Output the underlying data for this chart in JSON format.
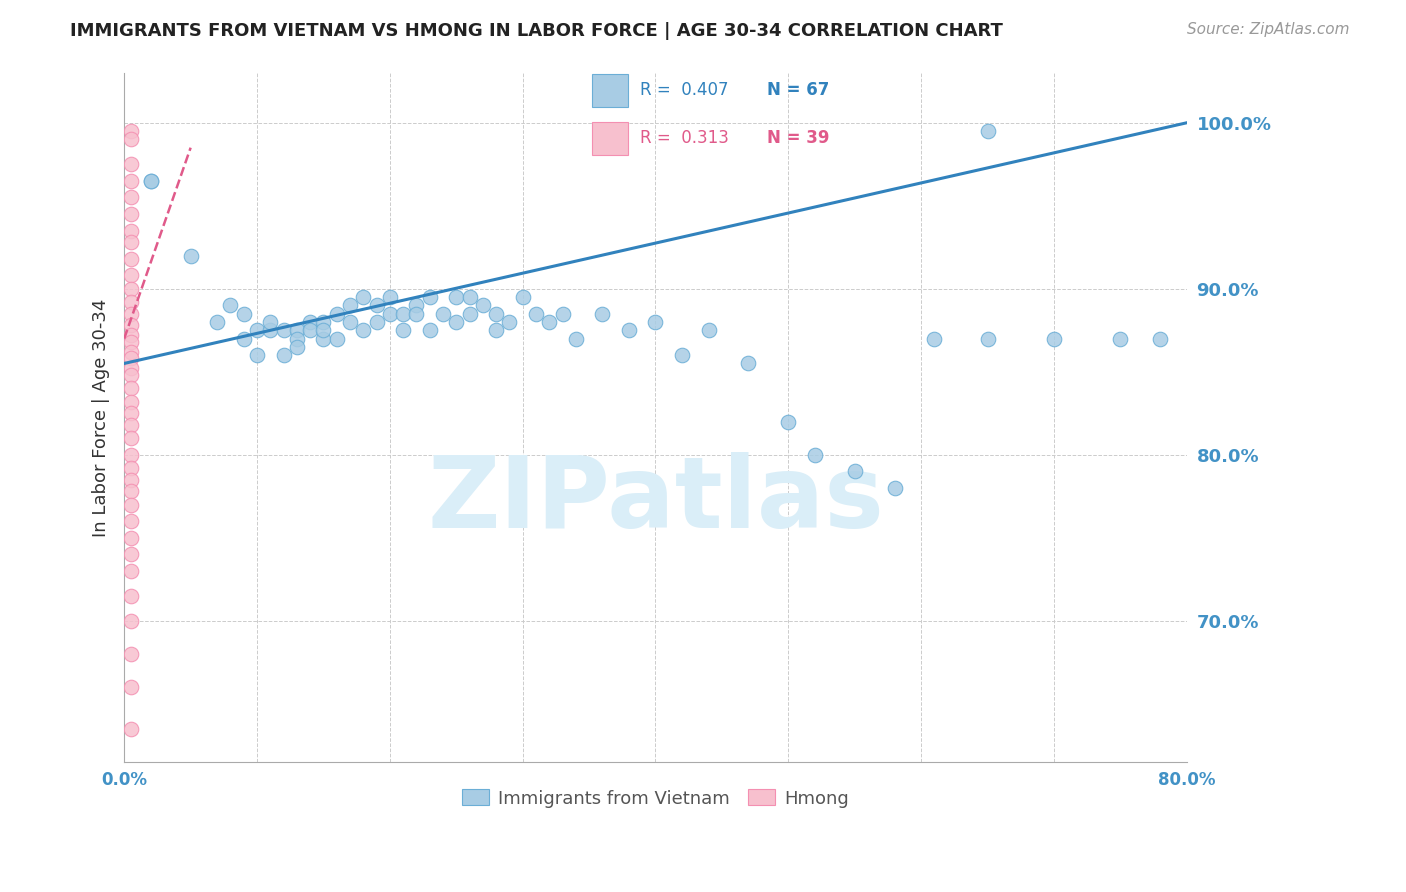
{
  "title": "IMMIGRANTS FROM VIETNAM VS HMONG IN LABOR FORCE | AGE 30-34 CORRELATION CHART",
  "source": "Source: ZipAtlas.com",
  "ylabel": "In Labor Force | Age 30-34",
  "xmin": 0.0,
  "xmax": 0.8,
  "ymin": 0.615,
  "ymax": 1.03,
  "yticks": [
    0.7,
    0.8,
    0.9,
    1.0
  ],
  "ytick_labels": [
    "70.0%",
    "80.0%",
    "90.0%",
    "100.0%"
  ],
  "legend_blue_r": "R =  0.407",
  "legend_blue_n": "N = 67",
  "legend_pink_r": "R =  0.313",
  "legend_pink_n": "N = 39",
  "blue_color": "#a8cce4",
  "pink_color": "#f7c0ce",
  "blue_edge_color": "#6baed6",
  "pink_edge_color": "#f48fb1",
  "blue_line_color": "#3182bd",
  "pink_line_color": "#e05a8a",
  "watermark_color": "#daeef8",
  "title_color": "#222222",
  "axis_label_color": "#333333",
  "tick_label_color": "#4292c6",
  "grid_color": "#cccccc",
  "background_color": "#ffffff",
  "vietnam_x": [
    0.02,
    0.05,
    0.07,
    0.08,
    0.09,
    0.09,
    0.1,
    0.1,
    0.11,
    0.11,
    0.12,
    0.12,
    0.13,
    0.13,
    0.13,
    0.14,
    0.14,
    0.15,
    0.15,
    0.15,
    0.16,
    0.16,
    0.17,
    0.17,
    0.18,
    0.18,
    0.19,
    0.19,
    0.2,
    0.2,
    0.21,
    0.21,
    0.22,
    0.22,
    0.23,
    0.23,
    0.24,
    0.25,
    0.25,
    0.26,
    0.26,
    0.27,
    0.28,
    0.28,
    0.29,
    0.3,
    0.31,
    0.32,
    0.33,
    0.34,
    0.36,
    0.38,
    0.4,
    0.42,
    0.44,
    0.47,
    0.5,
    0.52,
    0.55,
    0.58,
    0.61,
    0.65,
    0.7,
    0.75,
    0.78,
    0.02,
    0.65
  ],
  "vietnam_y": [
    0.965,
    0.92,
    0.88,
    0.89,
    0.87,
    0.885,
    0.875,
    0.86,
    0.875,
    0.88,
    0.875,
    0.86,
    0.875,
    0.87,
    0.865,
    0.88,
    0.875,
    0.88,
    0.87,
    0.875,
    0.885,
    0.87,
    0.89,
    0.88,
    0.895,
    0.875,
    0.89,
    0.88,
    0.895,
    0.885,
    0.885,
    0.875,
    0.89,
    0.885,
    0.895,
    0.875,
    0.885,
    0.895,
    0.88,
    0.895,
    0.885,
    0.89,
    0.885,
    0.875,
    0.88,
    0.895,
    0.885,
    0.88,
    0.885,
    0.87,
    0.885,
    0.875,
    0.88,
    0.86,
    0.875,
    0.855,
    0.82,
    0.8,
    0.79,
    0.78,
    0.87,
    0.87,
    0.87,
    0.87,
    0.87,
    0.965,
    0.995
  ],
  "hmong_x": [
    0.005,
    0.005,
    0.005,
    0.005,
    0.005,
    0.005,
    0.005,
    0.005,
    0.005,
    0.005,
    0.005,
    0.005,
    0.005,
    0.005,
    0.005,
    0.005,
    0.005,
    0.005,
    0.005,
    0.005,
    0.005,
    0.005,
    0.005,
    0.005,
    0.005,
    0.005,
    0.005,
    0.005,
    0.005,
    0.005,
    0.005,
    0.005,
    0.005,
    0.005,
    0.005,
    0.005,
    0.005,
    0.005,
    0.005
  ],
  "hmong_y": [
    0.995,
    0.99,
    0.975,
    0.965,
    0.955,
    0.945,
    0.935,
    0.928,
    0.918,
    0.908,
    0.9,
    0.892,
    0.885,
    0.878,
    0.872,
    0.868,
    0.862,
    0.858,
    0.852,
    0.848,
    0.84,
    0.832,
    0.825,
    0.818,
    0.81,
    0.8,
    0.792,
    0.785,
    0.778,
    0.77,
    0.76,
    0.75,
    0.74,
    0.73,
    0.715,
    0.7,
    0.68,
    0.66,
    0.635
  ],
  "blue_trendline_x": [
    0.0,
    0.8
  ],
  "blue_trendline_y": [
    0.855,
    1.0
  ],
  "pink_trendline_x": [
    0.0,
    0.05
  ],
  "pink_trendline_y": [
    0.87,
    0.985
  ]
}
